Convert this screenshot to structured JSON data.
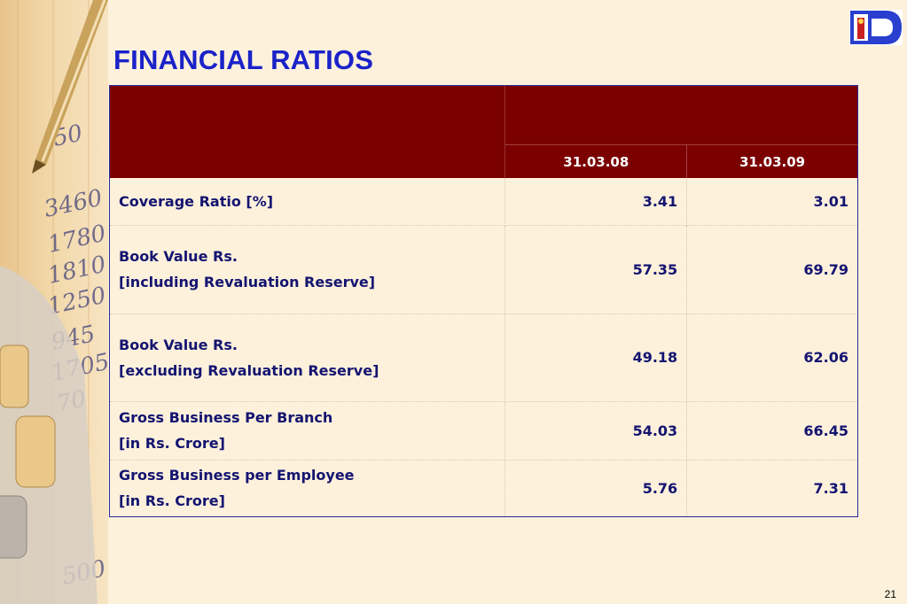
{
  "slide": {
    "title": "FINANCIAL RATIOS",
    "page_number": "21"
  },
  "table": {
    "columns": [
      "31.03.08",
      "31.03.09"
    ],
    "rows": [
      {
        "label_lines": [
          "Coverage Ratio [%]"
        ],
        "values": [
          "3.41",
          "3.01"
        ]
      },
      {
        "label_lines": [
          "Book Value Rs.",
          "[including Revaluation Reserve]"
        ],
        "values": [
          "57.35",
          "69.79"
        ]
      },
      {
        "label_lines": [
          "Book Value Rs.",
          "[excluding Revaluation Reserve]"
        ],
        "values": [
          "49.18",
          "62.06"
        ]
      },
      {
        "label_lines": [
          "Gross Business Per Branch",
          "[in Rs. Crore]"
        ],
        "values": [
          "54.03",
          "66.45"
        ]
      },
      {
        "label_lines": [
          "Gross Business per Employee",
          "[in Rs. Crore]"
        ],
        "values": [
          "5.76",
          "7.31"
        ]
      }
    ]
  },
  "colors": {
    "title": "#1a22c8",
    "header_bg": "#7b0000",
    "body_text": "#141470",
    "background": "#fdf1dc"
  },
  "icons": {
    "logo": "bank-logo-icon"
  }
}
